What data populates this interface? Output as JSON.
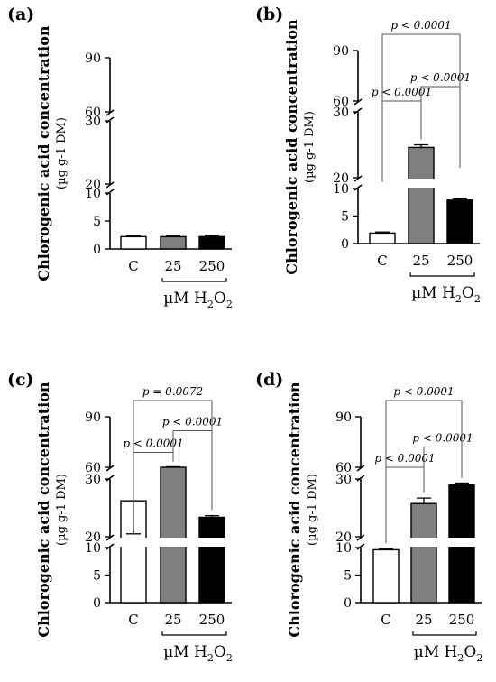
{
  "figure": {
    "y_axis_title": "Chlorogenic acid concentration",
    "y_axis_unit": "(µg g-1 DM)",
    "x_axis_unit": "µM H2O2",
    "categories": [
      "C",
      "25",
      "250"
    ]
  },
  "chart_data": [
    {
      "panel": "(a)",
      "type": "bar",
      "categories": [
        "C",
        "25",
        "250"
      ],
      "values": [
        2.2,
        2.2,
        2.2
      ],
      "errors": [
        0.2,
        0.2,
        0.2
      ],
      "bar_colors": [
        "#ffffff",
        "#7f7f7f",
        "#000000"
      ],
      "yticks": [
        0,
        5,
        10,
        20,
        30,
        60,
        90
      ],
      "axis_breaks": [
        [
          10,
          20
        ],
        [
          30,
          60
        ]
      ],
      "annotations": []
    },
    {
      "panel": "(b)",
      "type": "bar",
      "categories": [
        "C",
        "25",
        "250"
      ],
      "values": [
        1.9,
        24.6,
        7.9
      ],
      "errors": [
        0.2,
        0.4,
        0.2
      ],
      "bar_colors": [
        "#ffffff",
        "#7f7f7f",
        "#000000"
      ],
      "yticks": [
        0,
        5,
        10,
        20,
        30,
        60,
        90
      ],
      "axis_breaks": [
        [
          10,
          20
        ],
        [
          30,
          60
        ]
      ],
      "annotations": [
        {
          "text": "p < 0.0001",
          "pair": [
            "C",
            "25"
          ]
        },
        {
          "text": "p < 0.0001",
          "pair": [
            "25",
            "250"
          ]
        },
        {
          "text": "p < 0.0001",
          "pair": [
            "C",
            "250"
          ]
        }
      ]
    },
    {
      "panel": "(c)",
      "type": "bar",
      "categories": [
        "C",
        "25",
        "250"
      ],
      "values": [
        18.5,
        60,
        15.5
      ],
      "errors": [
        2,
        0.3,
        0.3
      ],
      "bar_colors": [
        "#ffffff",
        "#7f7f7f",
        "#000000"
      ],
      "yticks": [
        0,
        5,
        10,
        20,
        30,
        60,
        90
      ],
      "axis_breaks": [
        [
          10,
          20
        ],
        [
          30,
          60
        ]
      ],
      "annotations": [
        {
          "text": "p < 0.0001",
          "pair": [
            "C",
            "25"
          ]
        },
        {
          "text": "p < 0.0001",
          "pair": [
            "25",
            "250"
          ]
        },
        {
          "text": "p = 0.0072",
          "pair": [
            "C",
            "250"
          ]
        }
      ]
    },
    {
      "panel": "(d)",
      "type": "bar",
      "categories": [
        "C",
        "25",
        "250"
      ],
      "values": [
        9.6,
        18,
        29
      ],
      "errors": [
        0.2,
        1,
        0.3
      ],
      "bar_colors": [
        "#ffffff",
        "#7f7f7f",
        "#000000"
      ],
      "yticks": [
        0,
        5,
        10,
        20,
        30,
        60,
        90
      ],
      "axis_breaks": [
        [
          10,
          20
        ],
        [
          30,
          60
        ]
      ],
      "annotations": [
        {
          "text": "p < 0.0001",
          "pair": [
            "C",
            "25"
          ]
        },
        {
          "text": "p < 0.0001",
          "pair": [
            "25",
            "250"
          ]
        },
        {
          "text": "p < 0.0001",
          "pair": [
            "C",
            "250"
          ]
        }
      ]
    }
  ]
}
